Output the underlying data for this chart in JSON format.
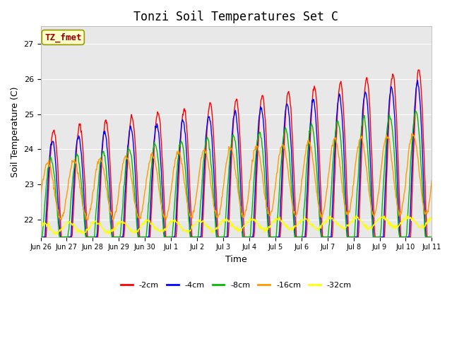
{
  "title": "Tonzi Soil Temperatures Set C",
  "xlabel": "Time",
  "ylabel": "Soil Temperature (C)",
  "ylim": [
    21.5,
    27.5
  ],
  "legend_label": "TZ_fmet",
  "legend_box_color": "#ffffcc",
  "legend_box_edge": "#999900",
  "series_colors": [
    "#ff0000",
    "#0000ff",
    "#00bb00",
    "#ff9900",
    "#ffff00"
  ],
  "series_labels": [
    "-2cm",
    "-4cm",
    "-8cm",
    "-16cm",
    "-32cm"
  ],
  "x_tick_labels": [
    "Jun 26",
    "Jun 27",
    "Jun 28",
    "Jun 29",
    "Jun 30",
    "Jul 1",
    "Jul 2",
    "Jul 3",
    "Jul 4",
    "Jul 5",
    "Jul 6",
    "Jul 7",
    "Jul 8",
    "Jul 9",
    "Jul 10",
    "Jul 11"
  ],
  "background_color": "#e8e8e8",
  "figure_background": "#ffffff",
  "n_days": 15,
  "pts_per_day": 48
}
